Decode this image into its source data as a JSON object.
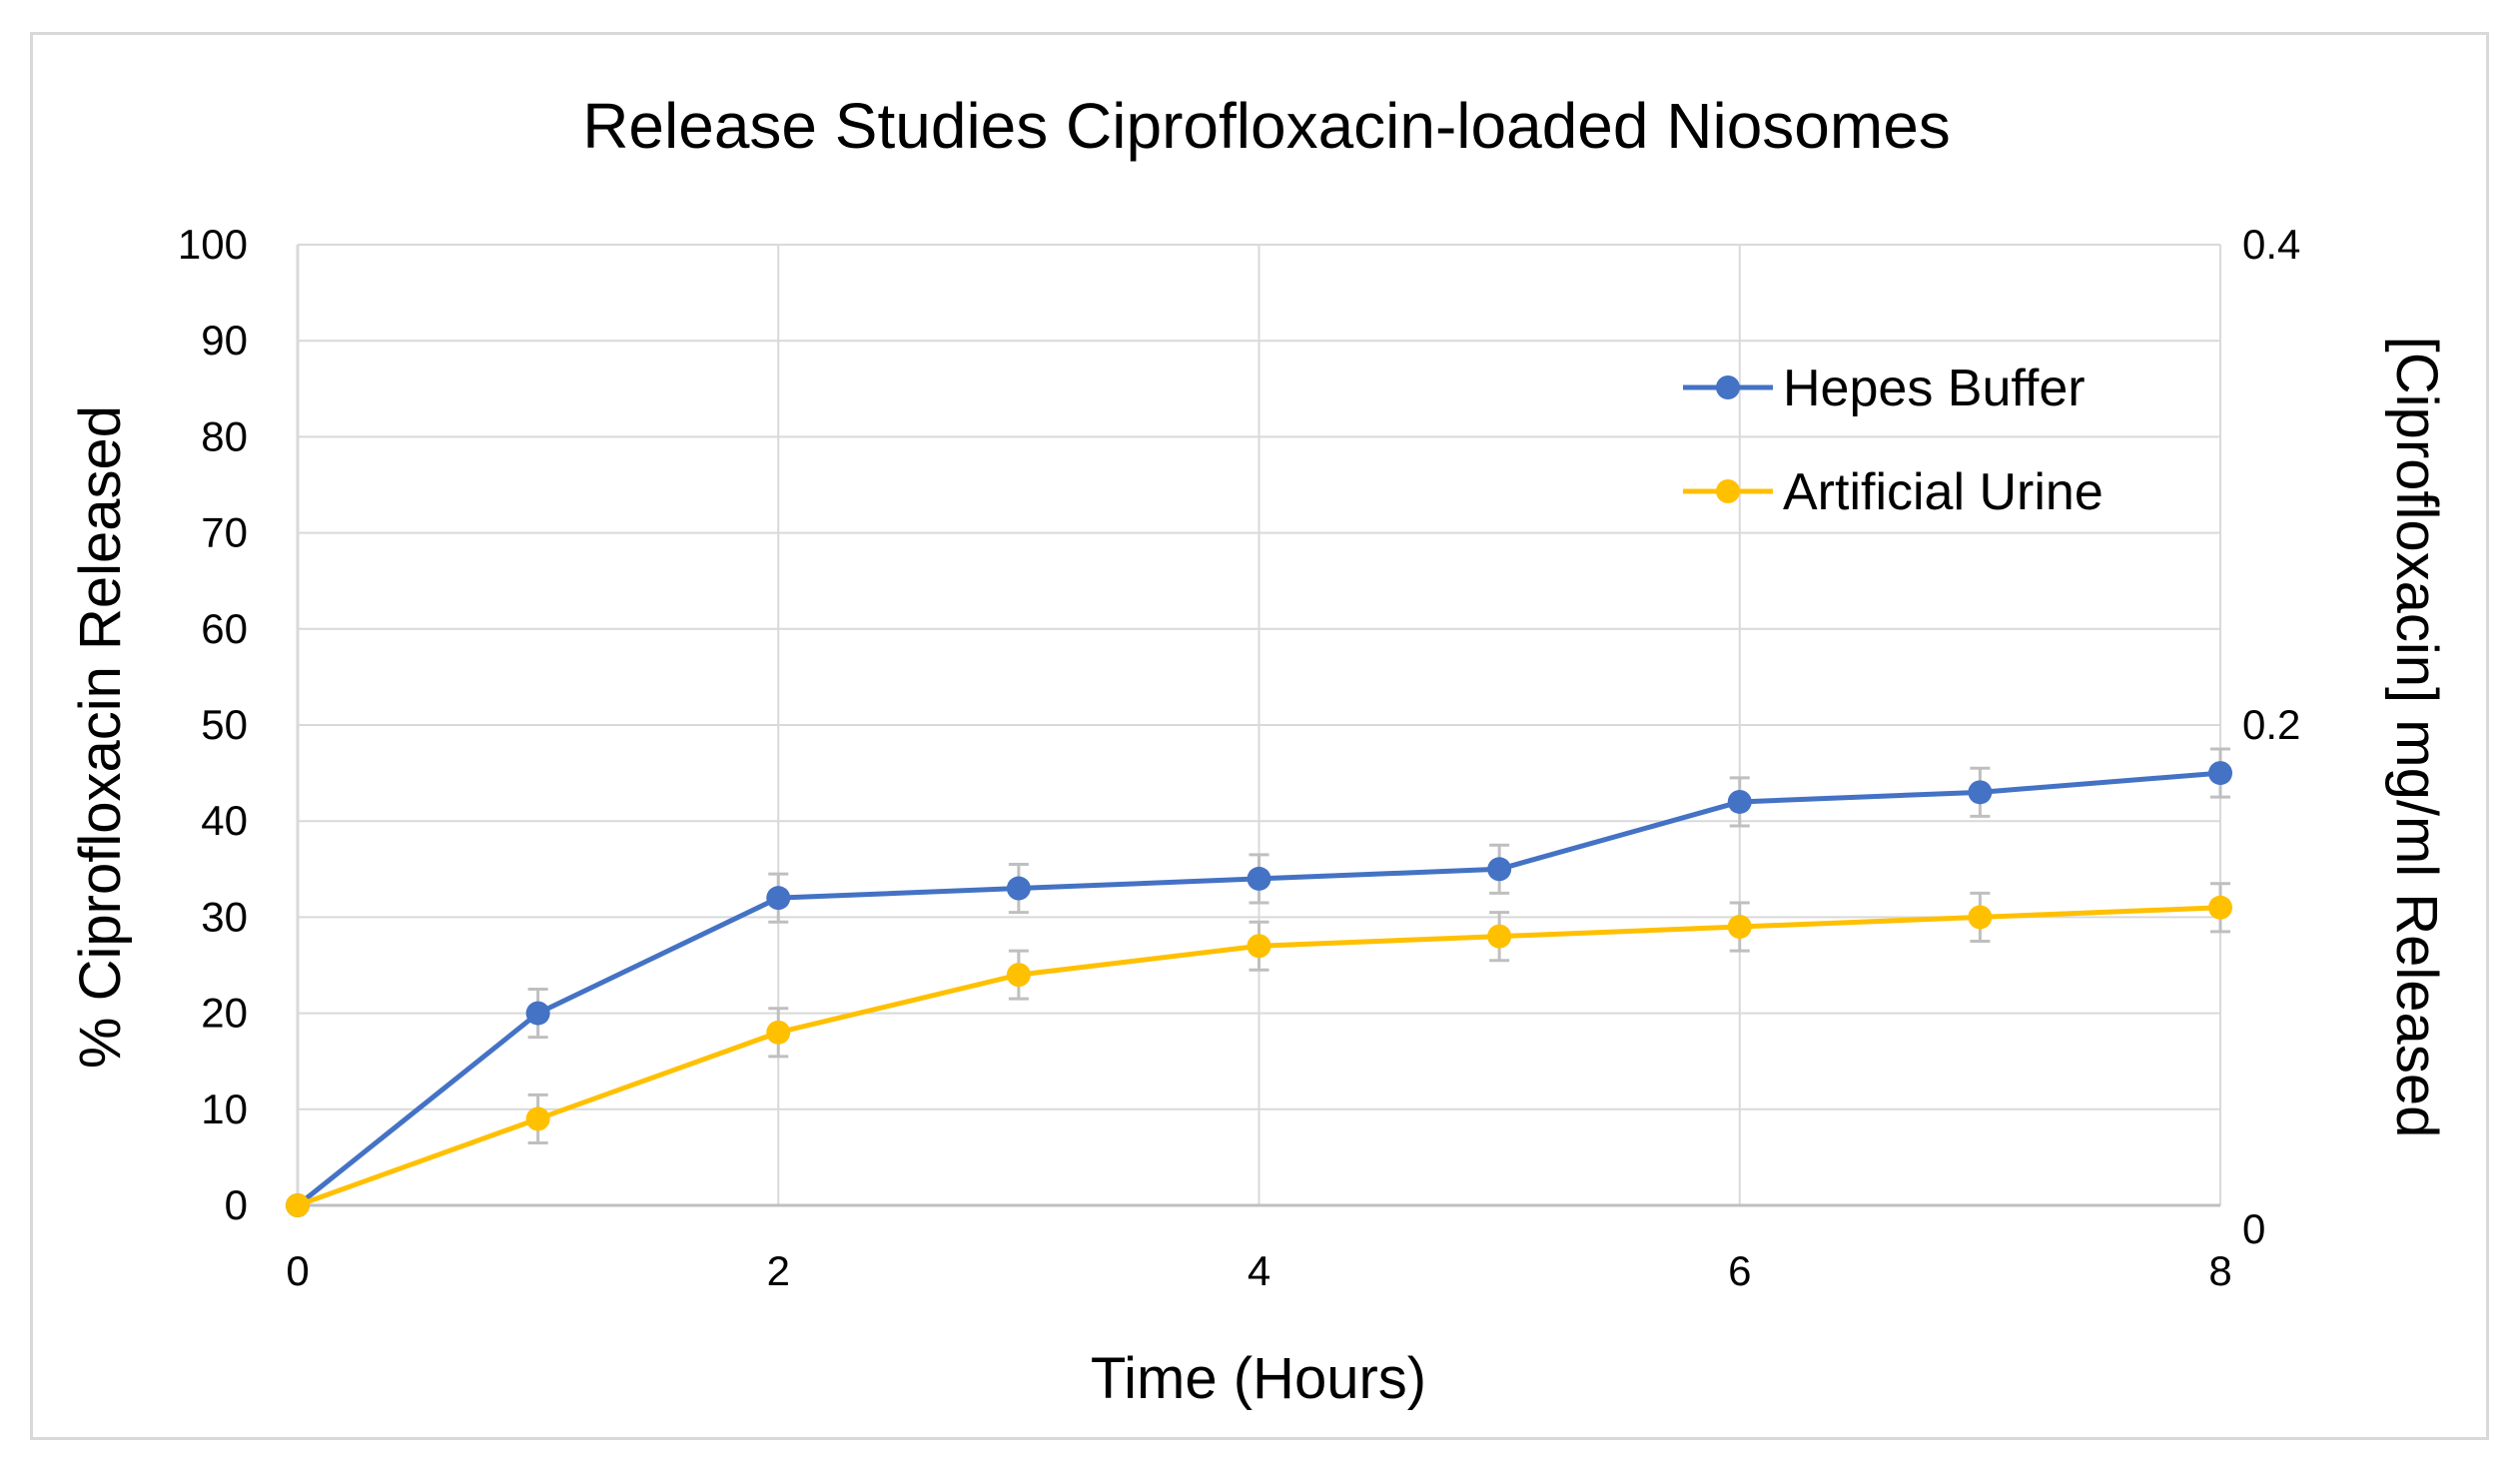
{
  "chart_data": {
    "type": "line",
    "title": "Release Studies Ciprofloxacin-loaded Niosomes",
    "xlabel": "Time (Hours)",
    "ylabel": "% Ciprofloxacin Released",
    "y2label": "[Ciprofloxacin] mg/ml Released",
    "xlim": [
      0,
      8
    ],
    "ylim": [
      0,
      100
    ],
    "y2lim": [
      0,
      0.4
    ],
    "xticks": [
      "0",
      "2",
      "4",
      "6",
      "8"
    ],
    "yticks": [
      "0",
      "10",
      "20",
      "30",
      "40",
      "50",
      "60",
      "70",
      "80",
      "90",
      "100"
    ],
    "y2ticks": [
      "0",
      "0.2",
      "0.4"
    ],
    "grid": true,
    "legend_position": "top-right",
    "series": [
      {
        "name": "Hepes Buffer",
        "color": "#4472c4",
        "x": [
          0,
          1,
          2,
          3,
          4,
          5,
          6,
          7,
          8
        ],
        "values": [
          0,
          20,
          32,
          33,
          34,
          35,
          42,
          43,
          45
        ],
        "errors": [
          0,
          2.5,
          2.5,
          2.5,
          2.5,
          2.5,
          2.5,
          2.5,
          2.5
        ]
      },
      {
        "name": "Artificial Urine",
        "color": "#ffc000",
        "x": [
          0,
          1,
          2,
          3,
          4,
          5,
          6,
          7,
          8
        ],
        "values": [
          0,
          9,
          18,
          24,
          27,
          28,
          29,
          30,
          31
        ],
        "errors": [
          0,
          2.5,
          2.5,
          2.5,
          2.5,
          2.5,
          2.5,
          2.5,
          2.5
        ]
      }
    ]
  }
}
